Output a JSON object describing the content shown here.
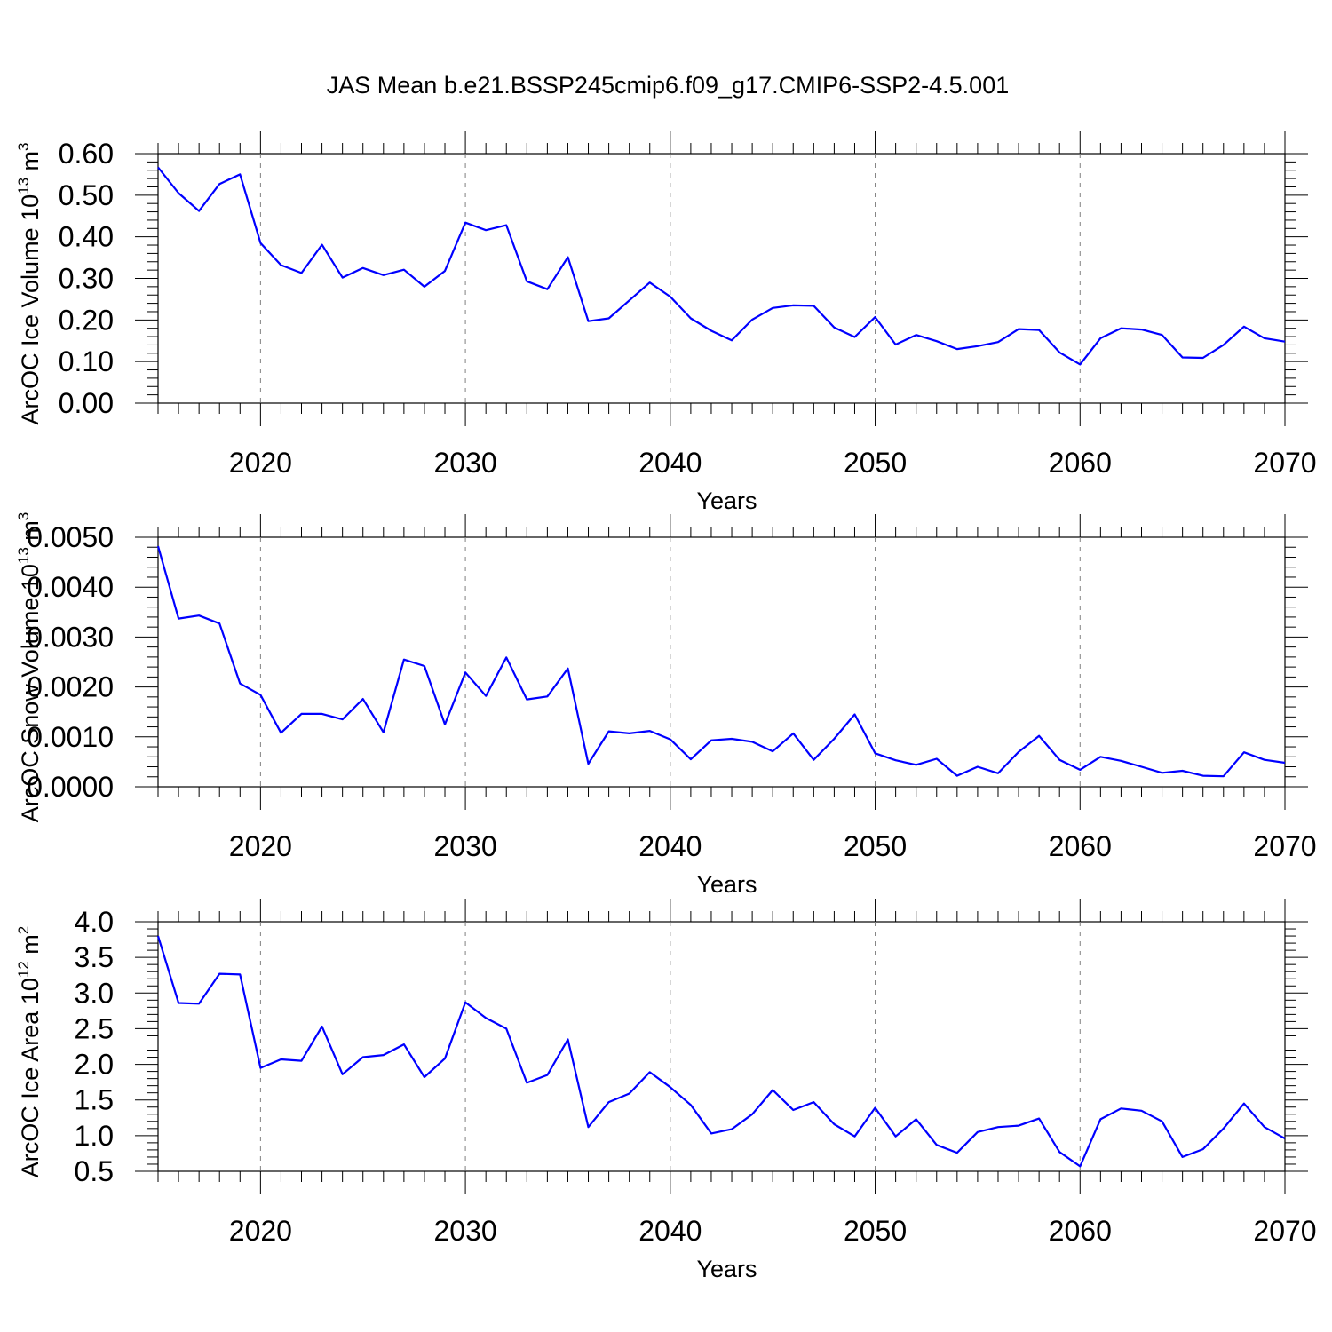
{
  "title": "JAS Mean b.e21.BSSP245cmip6.f09_g17.CMIP6-SSP2-4.5.001",
  "colors": {
    "line": "#0000ff",
    "axes": "#000000",
    "grid": "#808080"
  },
  "chart_data": [
    {
      "type": "line",
      "ylabel": {
        "main": "ArcOC Ice Volume 10",
        "exp": "13",
        "unit": " m",
        "unit_exp": "3"
      },
      "xlabel": "Years",
      "xlim": [
        2015,
        2070
      ],
      "ylim": [
        0.0,
        0.6
      ],
      "xticks": [
        2020,
        2030,
        2040,
        2050,
        2060,
        2070
      ],
      "xtick_labels": [
        "2020",
        "2030",
        "2040",
        "2050",
        "2060",
        "2070"
      ],
      "yticks": [
        0.0,
        0.1,
        0.2,
        0.3,
        0.4,
        0.5,
        0.6
      ],
      "ytick_labels": [
        "0.00",
        "0.10",
        "0.20",
        "0.30",
        "0.40",
        "0.50",
        "0.60"
      ],
      "grid": "vertical dashed at major x ticks",
      "x": [
        2015,
        2016,
        2017,
        2018,
        2019,
        2020,
        2021,
        2022,
        2023,
        2024,
        2025,
        2026,
        2027,
        2028,
        2029,
        2030,
        2031,
        2032,
        2033,
        2034,
        2035,
        2036,
        2037,
        2038,
        2039,
        2040,
        2041,
        2042,
        2043,
        2044,
        2045,
        2046,
        2047,
        2048,
        2049,
        2050,
        2051,
        2052,
        2053,
        2054,
        2055,
        2056,
        2057,
        2058,
        2059,
        2060,
        2061,
        2062,
        2063,
        2064,
        2065,
        2066,
        2067,
        2068,
        2069,
        2070
      ],
      "y": [
        0.567,
        0.505,
        0.462,
        0.527,
        0.55,
        0.385,
        0.332,
        0.313,
        0.381,
        0.302,
        0.325,
        0.308,
        0.321,
        0.28,
        0.318,
        0.434,
        0.416,
        0.428,
        0.293,
        0.274,
        0.351,
        0.197,
        0.204,
        0.247,
        0.29,
        0.256,
        0.204,
        0.174,
        0.151,
        0.201,
        0.229,
        0.235,
        0.234,
        0.182,
        0.159,
        0.207,
        0.141,
        0.164,
        0.149,
        0.13,
        0.137,
        0.147,
        0.178,
        0.176,
        0.122,
        0.093,
        0.156,
        0.18,
        0.177,
        0.164,
        0.11,
        0.109,
        0.14,
        0.184,
        0.156,
        0.148
      ]
    },
    {
      "type": "line",
      "ylabel": {
        "main": "ArcOC Snow Volume 10",
        "exp": "13",
        "unit": " m",
        "unit_exp": "3"
      },
      "xlabel": "Years",
      "xlim": [
        2015,
        2070
      ],
      "ylim": [
        0.0,
        0.005
      ],
      "xticks": [
        2020,
        2030,
        2040,
        2050,
        2060,
        2070
      ],
      "xtick_labels": [
        "2020",
        "2030",
        "2040",
        "2050",
        "2060",
        "2070"
      ],
      "yticks": [
        0.0,
        0.001,
        0.002,
        0.003,
        0.004,
        0.005
      ],
      "ytick_labels": [
        "0.0000",
        "0.0010",
        "0.0020",
        "0.0030",
        "0.0040",
        "0.0050"
      ],
      "grid": "vertical dashed at major x ticks",
      "x": [
        2015,
        2016,
        2017,
        2018,
        2019,
        2020,
        2021,
        2022,
        2023,
        2024,
        2025,
        2026,
        2027,
        2028,
        2029,
        2030,
        2031,
        2032,
        2033,
        2034,
        2035,
        2036,
        2037,
        2038,
        2039,
        2040,
        2041,
        2042,
        2043,
        2044,
        2045,
        2046,
        2047,
        2048,
        2049,
        2050,
        2051,
        2052,
        2053,
        2054,
        2055,
        2056,
        2057,
        2058,
        2059,
        2060,
        2061,
        2062,
        2063,
        2064,
        2065,
        2066,
        2067,
        2068,
        2069,
        2070
      ],
      "y": [
        0.00482,
        0.00337,
        0.00343,
        0.00327,
        0.00207,
        0.00184,
        0.00108,
        0.00146,
        0.00146,
        0.00135,
        0.00176,
        0.00109,
        0.00255,
        0.00242,
        0.00125,
        0.00229,
        0.00182,
        0.00259,
        0.00175,
        0.00181,
        0.00237,
        0.00046,
        0.00111,
        0.00107,
        0.00112,
        0.00095,
        0.00055,
        0.00093,
        0.00096,
        0.0009,
        0.00071,
        0.00107,
        0.00054,
        0.00096,
        0.00145,
        0.00067,
        0.00053,
        0.00044,
        0.00056,
        0.00022,
        0.0004,
        0.00027,
        0.0007,
        0.00102,
        0.00054,
        0.00034,
        0.0006,
        0.00052,
        0.0004,
        0.00028,
        0.00032,
        0.00022,
        0.00021,
        0.00069,
        0.00054,
        0.00048
      ]
    },
    {
      "type": "line",
      "ylabel": {
        "main": "ArcOC Ice Area 10",
        "exp": "12",
        "unit": " m",
        "unit_exp": "2"
      },
      "xlabel": "Years",
      "xlim": [
        2015,
        2070
      ],
      "ylim": [
        0.5,
        4.0
      ],
      "xticks": [
        2020,
        2030,
        2040,
        2050,
        2060,
        2070
      ],
      "xtick_labels": [
        "2020",
        "2030",
        "2040",
        "2050",
        "2060",
        "2070"
      ],
      "yticks": [
        0.5,
        1.0,
        1.5,
        2.0,
        2.5,
        3.0,
        3.5,
        4.0
      ],
      "ytick_labels": [
        "0.5",
        "1.0",
        "1.5",
        "2.0",
        "2.5",
        "3.0",
        "3.5",
        "4.0"
      ],
      "grid": "vertical dashed at major x ticks",
      "x": [
        2015,
        2016,
        2017,
        2018,
        2019,
        2020,
        2021,
        2022,
        2023,
        2024,
        2025,
        2026,
        2027,
        2028,
        2029,
        2030,
        2031,
        2032,
        2033,
        2034,
        2035,
        2036,
        2037,
        2038,
        2039,
        2040,
        2041,
        2042,
        2043,
        2044,
        2045,
        2046,
        2047,
        2048,
        2049,
        2050,
        2051,
        2052,
        2053,
        2054,
        2055,
        2056,
        2057,
        2058,
        2059,
        2060,
        2061,
        2062,
        2063,
        2064,
        2065,
        2066,
        2067,
        2068,
        2069,
        2070
      ],
      "y": [
        3.8,
        2.86,
        2.85,
        3.27,
        3.26,
        1.95,
        2.07,
        2.05,
        2.53,
        1.86,
        2.1,
        2.13,
        2.28,
        1.82,
        2.08,
        2.87,
        2.65,
        2.5,
        1.74,
        1.85,
        2.35,
        1.12,
        1.47,
        1.59,
        1.89,
        1.68,
        1.43,
        1.03,
        1.09,
        1.3,
        1.64,
        1.36,
        1.47,
        1.16,
        0.99,
        1.39,
        0.99,
        1.23,
        0.87,
        0.76,
        1.05,
        1.12,
        1.14,
        1.24,
        0.77,
        0.57,
        1.23,
        1.38,
        1.35,
        1.2,
        0.7,
        0.81,
        1.1,
        1.45,
        1.12,
        0.96
      ]
    }
  ]
}
